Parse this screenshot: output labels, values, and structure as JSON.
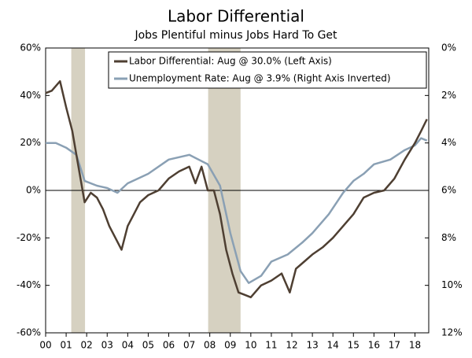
{
  "chart_data": {
    "type": "line",
    "title": "Labor Differential",
    "subtitle": "Jobs Plentiful  minus Jobs Hard To Get",
    "xlim": [
      2000,
      2018.67
    ],
    "xticks": [
      {
        "value": 2000,
        "label": "00"
      },
      {
        "value": 2001,
        "label": "01"
      },
      {
        "value": 2002,
        "label": "02"
      },
      {
        "value": 2003,
        "label": "03"
      },
      {
        "value": 2004,
        "label": "04"
      },
      {
        "value": 2005,
        "label": "05"
      },
      {
        "value": 2006,
        "label": "06"
      },
      {
        "value": 2007,
        "label": "07"
      },
      {
        "value": 2008,
        "label": "08"
      },
      {
        "value": 2009,
        "label": "09"
      },
      {
        "value": 2010,
        "label": "10"
      },
      {
        "value": 2011,
        "label": "11"
      },
      {
        "value": 2012,
        "label": "12"
      },
      {
        "value": 2013,
        "label": "13"
      },
      {
        "value": 2014,
        "label": "14"
      },
      {
        "value": 2015,
        "label": "15"
      },
      {
        "value": 2016,
        "label": "16"
      },
      {
        "value": 2017,
        "label": "17"
      },
      {
        "value": 2018,
        "label": "18"
      }
    ],
    "ylim": [
      -60,
      60
    ],
    "yticks": [
      {
        "value": -60,
        "label": "-60%"
      },
      {
        "value": -40,
        "label": "-40%"
      },
      {
        "value": -20,
        "label": "-20%"
      },
      {
        "value": 0,
        "label": "0%"
      },
      {
        "value": 20,
        "label": "20%"
      },
      {
        "value": 40,
        "label": "40%"
      },
      {
        "value": 60,
        "label": "60%"
      }
    ],
    "y2lim": [
      0,
      12
    ],
    "y2_inverted": true,
    "y2ticks": [
      {
        "value": 0,
        "label": "0%"
      },
      {
        "value": 2,
        "label": "2%"
      },
      {
        "value": 4,
        "label": "4%"
      },
      {
        "value": 6,
        "label": "6%"
      },
      {
        "value": 8,
        "label": "8%"
      },
      {
        "value": 10,
        "label": "10%"
      },
      {
        "value": 12,
        "label": "12%"
      }
    ],
    "shaded_regions": [
      [
        2001.25,
        2001.92
      ],
      [
        2007.92,
        2009.5
      ]
    ],
    "shade_color": "#d6d1c1",
    "legend": "top-right",
    "series": [
      {
        "name": "Labor Differential: Aug @ 30.0% (Left Axis)",
        "color": "#4e3f32",
        "axis": "y",
        "x": [
          2000.0,
          2000.3,
          2000.5,
          2000.7,
          2001.0,
          2001.3,
          2001.6,
          2001.9,
          2002.2,
          2002.5,
          2002.8,
          2003.1,
          2003.4,
          2003.7,
          2004.0,
          2004.3,
          2004.6,
          2005.0,
          2005.5,
          2006.0,
          2006.5,
          2007.0,
          2007.3,
          2007.6,
          2007.9,
          2008.2,
          2008.5,
          2008.8,
          2009.1,
          2009.4,
          2009.7,
          2010.0,
          2010.5,
          2011.0,
          2011.5,
          2011.9,
          2012.2,
          2012.6,
          2013.0,
          2013.5,
          2014.0,
          2014.5,
          2015.0,
          2015.5,
          2016.0,
          2016.5,
          2017.0,
          2017.5,
          2018.0,
          2018.3,
          2018.58
        ],
        "values": [
          41,
          42,
          44,
          46,
          35,
          25,
          10,
          -5,
          -1,
          -3,
          -8,
          -15,
          -20,
          -25,
          -15,
          -10,
          -5,
          -2,
          0,
          5,
          8,
          10,
          3,
          10,
          0,
          0,
          -10,
          -25,
          -35,
          -43,
          -44,
          -45,
          -40,
          -38,
          -35,
          -43,
          -33,
          -30,
          -27,
          -24,
          -20,
          -15,
          -10,
          -3,
          -1,
          0,
          5,
          13,
          20,
          25,
          30
        ]
      },
      {
        "name": "Unemployment Rate: Aug @ 3.9% (Right Axis Inverted)",
        "color": "#8aa0b4",
        "axis": "y2",
        "x": [
          2000.0,
          2000.5,
          2001.0,
          2001.5,
          2001.9,
          2002.5,
          2003.0,
          2003.5,
          2004.0,
          2005.0,
          2006.0,
          2007.0,
          2007.9,
          2008.5,
          2009.0,
          2009.5,
          2009.9,
          2010.5,
          2011.0,
          2011.8,
          2012.5,
          2013.0,
          2013.8,
          2014.5,
          2015.0,
          2015.5,
          2016.0,
          2016.8,
          2017.5,
          2018.0,
          2018.3,
          2018.58
        ],
        "values": [
          4.0,
          4.0,
          4.2,
          4.5,
          5.6,
          5.8,
          5.9,
          6.1,
          5.7,
          5.3,
          4.7,
          4.5,
          4.9,
          5.8,
          7.8,
          9.4,
          9.9,
          9.6,
          9.0,
          8.7,
          8.2,
          7.8,
          7.0,
          6.1,
          5.6,
          5.3,
          4.9,
          4.7,
          4.3,
          4.1,
          3.8,
          3.9
        ]
      }
    ]
  }
}
